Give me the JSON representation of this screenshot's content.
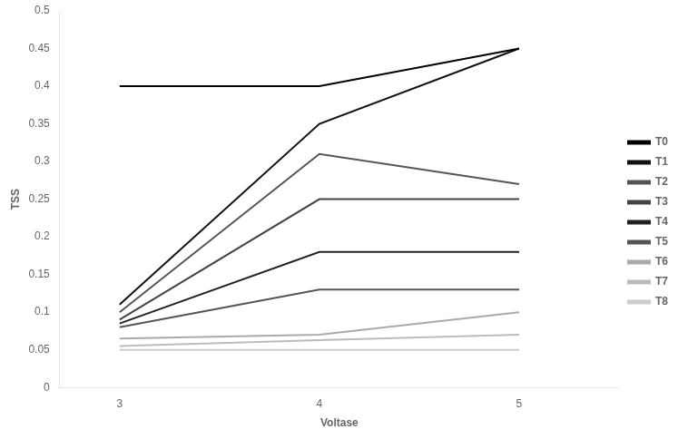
{
  "chart_data": {
    "type": "line",
    "x_label": "Voltase",
    "y_label": "TSS",
    "x": [
      3,
      4,
      5
    ],
    "series": [
      {
        "name": "T0",
        "color": "#000000",
        "line_style": "solid",
        "values": [
          0.4,
          0.4,
          0.45
        ]
      },
      {
        "name": "T1",
        "color": "#111111",
        "line_style": "solid",
        "values": [
          0.11,
          0.35,
          0.45
        ]
      },
      {
        "name": "T2",
        "color": "#555555",
        "line_style": "solid",
        "values": [
          0.1,
          0.31,
          0.27
        ]
      },
      {
        "name": "T3",
        "color": "#444444",
        "line_style": "solid",
        "values": [
          0.09,
          0.25,
          0.25
        ]
      },
      {
        "name": "T4",
        "color": "#222222",
        "line_style": "solid",
        "values": [
          0.085,
          0.18,
          0.18
        ]
      },
      {
        "name": "T5",
        "color": "#555555",
        "line_style": "solid",
        "values": [
          0.08,
          0.13,
          0.13
        ]
      },
      {
        "name": "T6",
        "color": "#aaaaaa",
        "line_style": "solid",
        "values": [
          0.065,
          0.07,
          0.1
        ]
      },
      {
        "name": "T7",
        "color": "#bbbbbb",
        "line_style": "solid",
        "values": [
          0.055,
          0.063,
          0.07
        ]
      },
      {
        "name": "T8",
        "color": "#cccccc",
        "line_style": "solid",
        "values": [
          0.05,
          0.05,
          0.05
        ]
      }
    ],
    "xlim": [
      2.7,
      5.5
    ],
    "ylim": [
      0,
      0.5
    ],
    "xticks": [
      3,
      4,
      5
    ],
    "yticks": [
      0,
      0.05,
      0.1,
      0.15,
      0.2,
      0.25,
      0.3,
      0.35,
      0.4,
      0.45,
      0.5
    ],
    "grid": false,
    "legend": "right"
  }
}
